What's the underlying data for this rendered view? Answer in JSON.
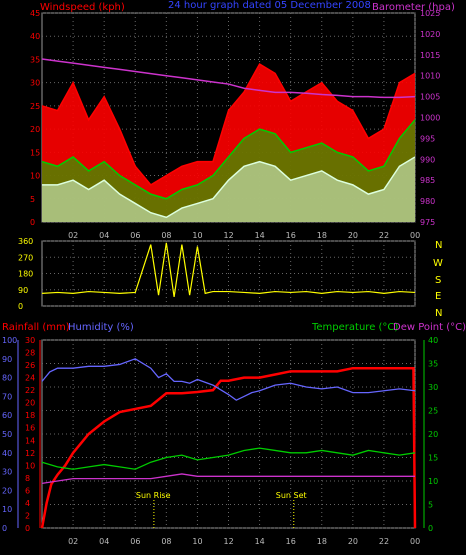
{
  "header": {
    "left_label": "Windspeed (kph)",
    "center_label": "24 hour graph dated 05 December 2008",
    "right_label": "Barometer (hpa)"
  },
  "compass": {
    "letters": [
      "N",
      "W",
      "S",
      "E",
      "N"
    ]
  },
  "bottom_labels": {
    "rainfall": "Rainfall (mm)",
    "humidity": "Humidity (%)",
    "temperature": "Temperature (°C)",
    "dewpoint": "Dew Point (°C)",
    "sunrise": "Sun Rise",
    "sunset": "Sun Set"
  },
  "colors": {
    "red": "#ff0000",
    "green": "#00cc00",
    "white_green": "#ddffdd",
    "magenta": "#cc33cc",
    "yellow": "#ffff00",
    "blue": "#6666ff",
    "axis": "#999999"
  },
  "chart_data": [
    {
      "type": "line",
      "name": "wind-barometer-chart",
      "x_ticks": [
        "02",
        "04",
        "06",
        "08",
        "10",
        "12",
        "14",
        "16",
        "18",
        "20",
        "22",
        "00"
      ],
      "xlim": [
        1,
        25
      ],
      "y_left_ticks": [
        "0",
        "5",
        "10",
        "15",
        "20",
        "25",
        "30",
        "35",
        "40",
        "45"
      ],
      "y_left_lim": [
        0,
        45
      ],
      "y_right_ticks": [
        "975",
        "980",
        "985",
        "990",
        "995",
        "1000",
        "1005",
        "1010",
        "1015",
        "1020",
        "1025"
      ],
      "y_right_lim": [
        975,
        1025
      ],
      "series": [
        {
          "name": "Windspeed (kph)",
          "axis": "left",
          "color": "#ff0000",
          "x": [
            1,
            2,
            3,
            4,
            5,
            6,
            7,
            8,
            9,
            10,
            11,
            12,
            13,
            14,
            15,
            16,
            17,
            18,
            19,
            20,
            21,
            22,
            23,
            24,
            25
          ],
          "y": [
            25,
            24,
            30,
            22,
            27,
            20,
            12,
            8,
            10,
            12,
            13,
            13,
            24,
            28,
            34,
            32,
            26,
            28,
            30,
            26,
            24,
            18,
            20,
            30,
            32
          ]
        },
        {
          "name": "Average windspeed",
          "axis": "left",
          "color": "#00cc00",
          "x": [
            1,
            2,
            3,
            4,
            5,
            6,
            7,
            8,
            9,
            10,
            11,
            12,
            13,
            14,
            15,
            16,
            17,
            18,
            19,
            20,
            21,
            22,
            23,
            24,
            25
          ],
          "y": [
            13,
            12,
            14,
            11,
            13,
            10,
            8,
            6,
            5,
            7,
            8,
            10,
            14,
            18,
            20,
            19,
            15,
            16,
            17,
            15,
            14,
            11,
            12,
            18,
            22
          ]
        },
        {
          "name": "Gust low",
          "axis": "left",
          "color": "#ddffdd",
          "x": [
            1,
            2,
            3,
            4,
            5,
            6,
            7,
            8,
            9,
            10,
            11,
            12,
            13,
            14,
            15,
            16,
            17,
            18,
            19,
            20,
            21,
            22,
            23,
            24,
            25
          ],
          "y": [
            8,
            8,
            9,
            7,
            9,
            6,
            4,
            2,
            1,
            3,
            4,
            5,
            9,
            12,
            13,
            12,
            9,
            10,
            11,
            9,
            8,
            6,
            7,
            12,
            14
          ]
        },
        {
          "name": "Barometer (hpa)",
          "axis": "right",
          "color": "#cc33cc",
          "x": [
            1,
            2,
            3,
            4,
            5,
            6,
            7,
            8,
            9,
            10,
            11,
            12,
            13,
            14,
            15,
            16,
            17,
            18,
            19,
            20,
            21,
            22,
            23,
            24,
            25
          ],
          "y": [
            1014,
            1013.5,
            1013,
            1012.5,
            1012,
            1011.5,
            1011,
            1010.5,
            1010,
            1009.5,
            1009,
            1008.5,
            1008,
            1007,
            1006.5,
            1006,
            1006,
            1005.8,
            1005.5,
            1005.3,
            1005,
            1005,
            1004.8,
            1004.8,
            1005
          ]
        }
      ]
    },
    {
      "type": "line",
      "name": "wind-direction-chart",
      "x_ticks": [
        "02",
        "04",
        "06",
        "08",
        "10",
        "12",
        "14",
        "16",
        "18",
        "20",
        "22",
        "00"
      ],
      "xlim": [
        1,
        25
      ],
      "y_ticks": [
        "0",
        "90",
        "180",
        "270",
        "360"
      ],
      "ylim": [
        0,
        360
      ],
      "series": [
        {
          "name": "Wind direction",
          "color": "#ffff00",
          "x": [
            1,
            2,
            3,
            4,
            5,
            6,
            7,
            8,
            8.5,
            9,
            9.5,
            10,
            10.5,
            11,
            11.5,
            12,
            13,
            14,
            15,
            16,
            17,
            18,
            19,
            20,
            21,
            22,
            23,
            24,
            25
          ],
          "y": [
            70,
            75,
            70,
            80,
            75,
            70,
            75,
            340,
            60,
            350,
            50,
            340,
            60,
            330,
            70,
            80,
            80,
            75,
            70,
            80,
            75,
            80,
            70,
            80,
            75,
            80,
            70,
            80,
            75
          ]
        }
      ]
    },
    {
      "type": "line",
      "name": "temperature-rainfall-chart",
      "x_ticks": [
        "02",
        "04",
        "06",
        "08",
        "10",
        "12",
        "14",
        "16",
        "18",
        "20",
        "22",
        "00"
      ],
      "xlim": [
        1,
        25
      ],
      "y_rain_ticks": [
        "0",
        "2",
        "4",
        "6",
        "8",
        "10",
        "12",
        "14",
        "16",
        "18",
        "20",
        "22",
        "24",
        "26",
        "28",
        "30"
      ],
      "y_rain_lim": [
        0,
        30
      ],
      "y_humidity_ticks": [
        "0",
        "10",
        "20",
        "30",
        "40",
        "50",
        "60",
        "70",
        "80",
        "90",
        "100"
      ],
      "y_humidity_lim": [
        0,
        100
      ],
      "y_temp_ticks": [
        "0",
        "5",
        "10",
        "15",
        "20",
        "25",
        "30",
        "35",
        "40"
      ],
      "y_temp_lim": [
        0,
        40
      ],
      "sunrise_x": 8.2,
      "sunset_x": 17.2,
      "series": [
        {
          "name": "Rainfall (mm)",
          "axis": "rain",
          "color": "#ff0000",
          "x": [
            1,
            1.3,
            1.6,
            2,
            2.5,
            3,
            3.5,
            4,
            5,
            6,
            7,
            8,
            9,
            10,
            11,
            12,
            12.5,
            13,
            14,
            15,
            16,
            17,
            18,
            19,
            20,
            21,
            22,
            23,
            24,
            24.9,
            25
          ],
          "y": [
            0,
            4,
            7,
            8.5,
            10,
            12,
            13.5,
            15,
            17,
            18.5,
            19,
            19.5,
            21.5,
            21.5,
            21.7,
            22,
            23.5,
            23.5,
            24,
            24,
            24.5,
            25,
            25,
            25,
            25,
            25.5,
            25.5,
            25.5,
            25.5,
            25.5,
            0
          ]
        },
        {
          "name": "Humidity (%)",
          "axis": "humidity",
          "color": "#6666ff",
          "x": [
            1,
            1.5,
            2,
            3,
            4,
            5,
            6,
            7,
            8,
            8.5,
            9,
            9.5,
            10,
            10.5,
            11,
            12,
            13,
            13.5,
            14,
            14.5,
            15,
            16,
            17,
            18,
            19,
            20,
            21,
            22,
            23,
            24,
            25
          ],
          "y": [
            78,
            83,
            85,
            85,
            86,
            86,
            87,
            90,
            85,
            80,
            82,
            78,
            78,
            77,
            79,
            76,
            71,
            68,
            70,
            72,
            73,
            76,
            77,
            75,
            74,
            75,
            72,
            72,
            73,
            74,
            73
          ]
        },
        {
          "name": "Temperature (°C)",
          "axis": "temp",
          "color": "#00cc00",
          "x": [
            1,
            2,
            3,
            4,
            5,
            6,
            7,
            8,
            9,
            10,
            11,
            12,
            13,
            14,
            15,
            16,
            17,
            18,
            19,
            20,
            21,
            22,
            23,
            24,
            25
          ],
          "y": [
            14,
            13,
            12.5,
            13,
            13.5,
            13,
            12.5,
            14,
            15,
            15.5,
            14.5,
            15,
            15.5,
            16.5,
            17,
            16.5,
            16,
            16,
            16.5,
            16,
            15.5,
            16.5,
            16,
            15.5,
            16
          ]
        },
        {
          "name": "Dew Point (°C)",
          "axis": "temp",
          "color": "#cc33cc",
          "x": [
            1,
            2,
            3,
            4,
            5,
            6,
            7,
            8,
            9,
            10,
            11,
            12,
            13,
            14,
            15,
            16,
            17,
            18,
            19,
            20,
            21,
            22,
            23,
            24,
            25
          ],
          "y": [
            9.5,
            10,
            10.5,
            10.5,
            10.5,
            10.5,
            10.5,
            10.5,
            11,
            11.5,
            11,
            11,
            11,
            11,
            11,
            11,
            11,
            11,
            11,
            11,
            11,
            11,
            11,
            11,
            11
          ]
        }
      ]
    }
  ]
}
